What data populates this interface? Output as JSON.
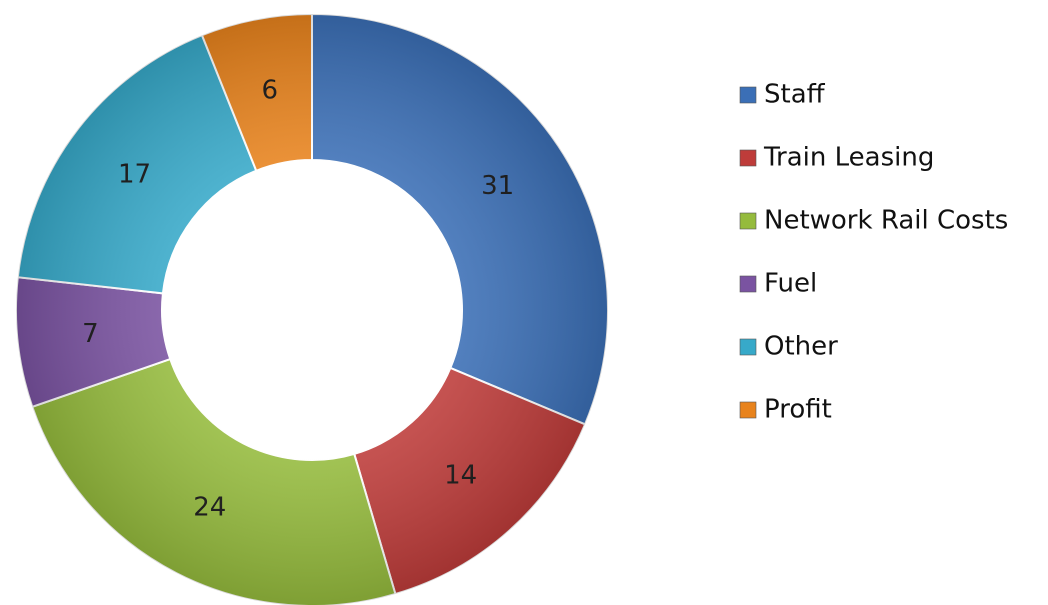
{
  "chart_data": {
    "type": "donut",
    "categories": [
      "Staff",
      "Train Leasing",
      "Network Rail Costs",
      "Fuel",
      "Other",
      "Profit"
    ],
    "values": [
      31,
      14,
      24,
      7,
      17,
      6
    ],
    "colors": [
      "#3b6fb6",
      "#be3c3a",
      "#95bb3d",
      "#7a53a1",
      "#37a9c9",
      "#e8831d"
    ],
    "legend": "right"
  }
}
